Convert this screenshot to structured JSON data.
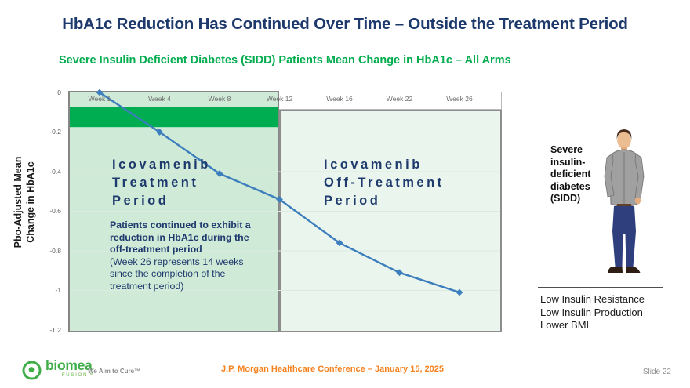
{
  "slide": {
    "title": "HbA1c Reduction Has Continued Over Time – Outside the Treatment Period",
    "subtitle": "Severe Insulin Deficient Diabetes (SIDD) Patients Mean Change in HbA1c – All Arms",
    "slide_number": "Slide 22"
  },
  "chart_data": {
    "type": "line",
    "title": "Severe Insulin Deficient Diabetes (SIDD) Patients Mean Change in HbA1c – All Arms",
    "categories": [
      "Week 1",
      "Week 4",
      "Week 8",
      "Week 12",
      "Week 16",
      "Week 22",
      "Week 26"
    ],
    "values": [
      0,
      -0.2,
      -0.41,
      -0.54,
      -0.76,
      -0.91,
      -1.01
    ],
    "ylabel": "Pbo-Adjusted Mean Change in HbA1c",
    "ylabel_lines": [
      "Pbo-Adjusted Mean",
      "Change in HbA1c"
    ],
    "ylim": [
      -1.2,
      0
    ],
    "yticks": [
      0,
      -0.2,
      -0.4,
      -0.6,
      -0.8,
      -1,
      -1.2
    ],
    "ytick_labels": [
      "0",
      "-0.2",
      "-0.4",
      "-0.6",
      "-0.8",
      "-1",
      "-1.2"
    ],
    "grid": true,
    "legend": "none",
    "line_color": "#3d7ebd",
    "gridline_color": "#dcebe1",
    "highlight_band": [
      -0.075,
      -0.175
    ],
    "highlight_band_color": "#00ad50",
    "regions": [
      {
        "label": "Icovamenib Treatment Period",
        "from": "Week 1",
        "to": "Week 12",
        "fill": "#d0ead8"
      },
      {
        "label": "Icovamenib Off-Treatment Period",
        "from": "Week 12",
        "to": "Week 26",
        "fill": "#eaf5ee"
      }
    ]
  },
  "chart_text": {
    "treatment_label_lines": [
      "Icovamenib",
      "Treatment",
      "Period"
    ],
    "off_treatment_label_lines": [
      "Icovamenib",
      "Off-Treatment",
      "Period"
    ],
    "annotation_bold": "Patients continued to exhibit a reduction in HbA1c during the off-treatment period",
    "annotation_note": "(Week 26 represents 14 weeks since the completion of the treatment period)"
  },
  "patient_panel": {
    "label": "Severe insulin-deficient diabetes (SIDD)",
    "characteristics": [
      "Low Insulin Resistance",
      "Low Insulin Production",
      "Lower BMI"
    ]
  },
  "footer": {
    "logo_name": "biomea",
    "logo_sub": "FUSION™",
    "tagline": "We Aim to Cure™",
    "conference": "J.P. Morgan Healthcare Conference – January 15, 2025"
  },
  "colors": {
    "title_navy": "#1e3a6d",
    "subtitle_green": "#00ac4e",
    "treatment_band_green": "#00ad50",
    "line_blue": "#3d7ebd",
    "accent_orange": "#f5821f",
    "logo_green": "#3fae49"
  }
}
